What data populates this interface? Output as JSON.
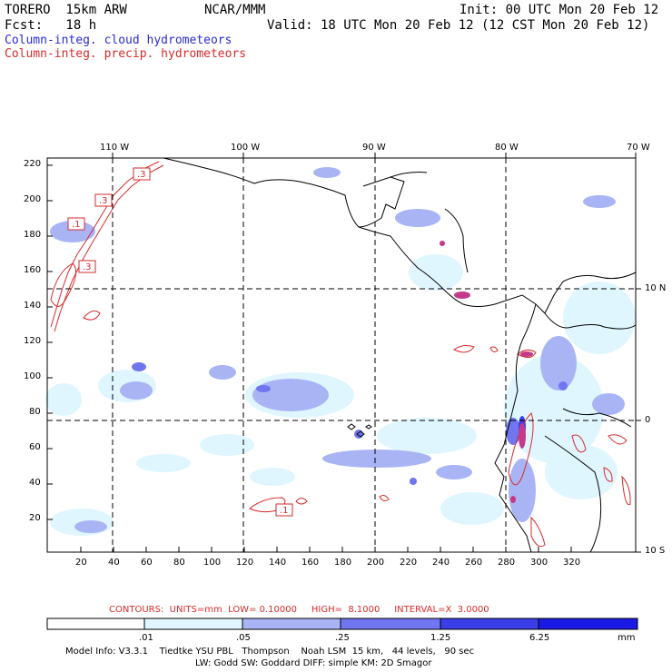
{
  "header": {
    "model": "TORERO  15km ARW",
    "org": "NCAR/MMM",
    "init": "Init: 00 UTC Mon 20 Feb 12",
    "fcst": "Fcst:   18 h",
    "valid": "Valid: 18 UTC Mon 20 Feb 12 (12 CST Mon 20 Feb 12)",
    "field1": "Column-integ. cloud hydrometeors",
    "field2": "Column-integ. precip. hydrometeors"
  },
  "colors": {
    "field1": "#2b2bd6",
    "field2": "#d62b2b",
    "contour": "#d62b2b",
    "shade1": "#dff6ff",
    "shade2": "#a9b4f5",
    "shade3": "#6f76f0",
    "shade4": "#3a3ee8",
    "shade5": "#1a1ae6"
  },
  "map": {
    "longitudes": [
      "110 W",
      "100 W",
      "90 W",
      "80 W",
      "70 W"
    ],
    "latitudes": [
      "10 N",
      "0",
      "10 S"
    ],
    "y_ticks": [
      "220",
      "200",
      "180",
      "160",
      "140",
      "120",
      "100",
      "80",
      "60",
      "40",
      "20"
    ],
    "x_ticks": [
      "20",
      "40",
      "60",
      "80",
      "100",
      "120",
      "140",
      "160",
      "180",
      "200",
      "220",
      "240",
      "260",
      "280",
      "300",
      "320"
    ],
    "contour_labels": [
      ".3",
      ".3",
      ".1",
      ".3",
      ".1"
    ]
  },
  "contours_info": {
    "units_text": "CONTOURS:  UNITS=mm  LOW= 0.10000     HIGH=  8.1000     INTERVAL=X  3.0000"
  },
  "colorbar": {
    "labels": [
      ".01",
      ".05",
      ".25",
      "1.25",
      "6.25"
    ],
    "unit": "mm"
  },
  "footer": {
    "line1": "Model Info: V3.3.1    Tiedtke YSU PBL   Thompson    Noah LSM  15 km,   44 levels,   90 sec",
    "line2": "LW: Godd SW: Goddard DIFF: simple KM: 2D Smagor"
  }
}
